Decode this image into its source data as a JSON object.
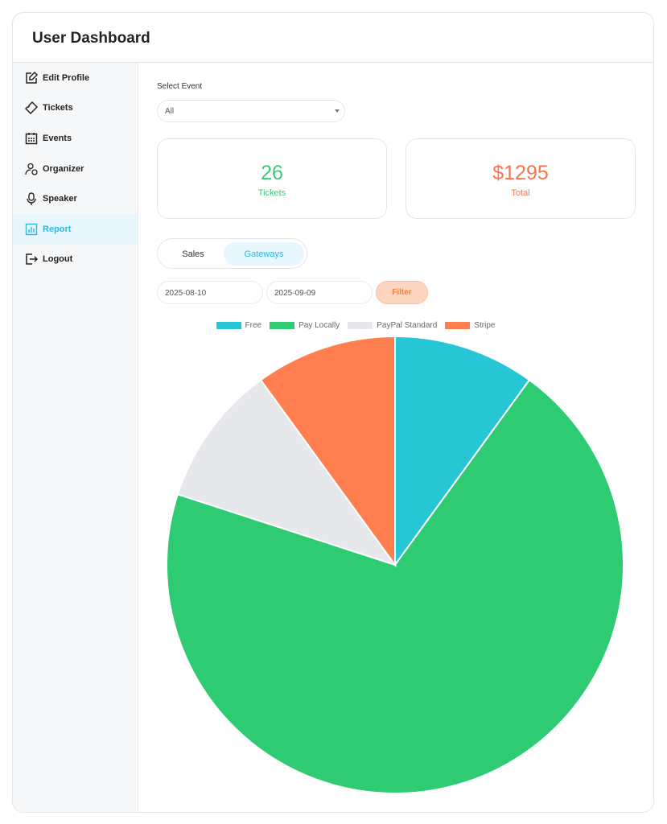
{
  "header": {
    "title": "User Dashboard"
  },
  "sidebar": {
    "items": [
      {
        "label": "Edit Profile",
        "icon": "edit-icon"
      },
      {
        "label": "Tickets",
        "icon": "ticket-icon"
      },
      {
        "label": "Events",
        "icon": "calendar-icon"
      },
      {
        "label": "Organizer",
        "icon": "organizer-icon"
      },
      {
        "label": "Speaker",
        "icon": "microphone-icon"
      },
      {
        "label": "Report",
        "icon": "report-icon",
        "active": true
      },
      {
        "label": "Logout",
        "icon": "logout-icon"
      }
    ]
  },
  "filters": {
    "select_label": "Select Event",
    "select_value": "All",
    "start_date": "2025-08-10",
    "end_date": "2025-09-09",
    "filter_label": "Filter"
  },
  "stats": {
    "tickets_value": "26",
    "tickets_label": "Tickets",
    "total_value": "$1295",
    "total_label": "Total"
  },
  "tabs": {
    "sales": "Sales",
    "gateways": "Gateways",
    "active": "Gateways"
  },
  "colors": {
    "tickets": "#3fc97a",
    "total": "#f7744e",
    "accent": "#2bb8e6"
  },
  "chart_data": {
    "type": "pie",
    "categories": [
      "Free",
      "Pay Locally",
      "PayPal Standard",
      "Stripe"
    ],
    "values": [
      10,
      70,
      10,
      10
    ],
    "colors": [
      "#26c6d4",
      "#2ecb73",
      "#e7e8eb",
      "#ff7e50"
    ],
    "legend": "top"
  }
}
